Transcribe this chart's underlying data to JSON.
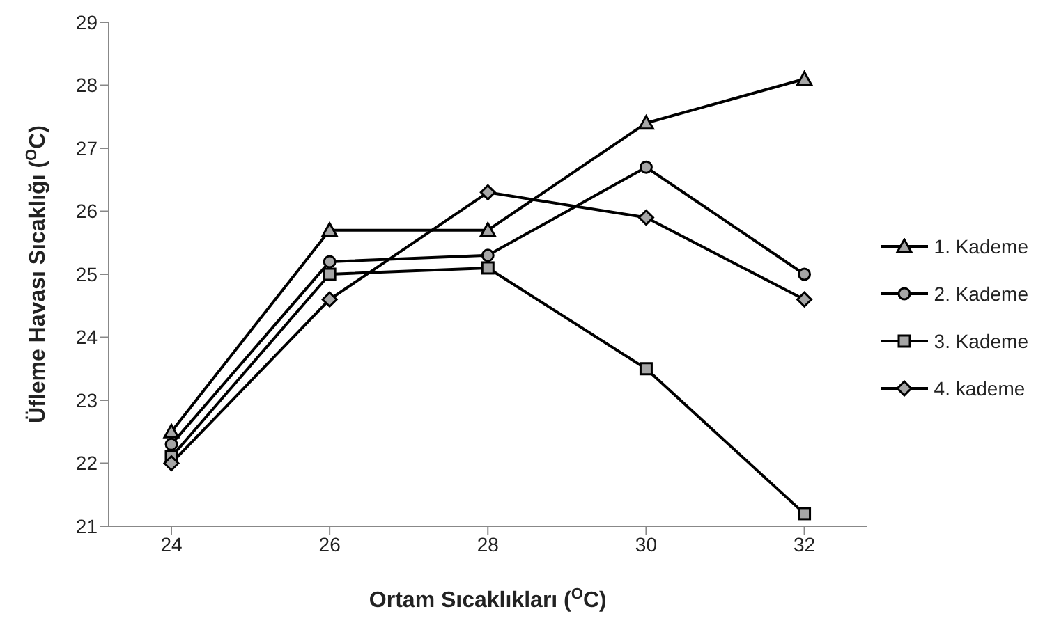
{
  "chart_data": {
    "type": "line",
    "xlabel": "Ortam Sıcaklıkları ($^{O}$C)",
    "ylabel": "Üfleme Havası Sıcaklığı ($^{O}$C)",
    "categories": [
      "24",
      "26",
      "28",
      "30",
      "32"
    ],
    "series": [
      {
        "name": "1. Kademe",
        "color": "#000000",
        "marker": "triangle",
        "values": [
          22.5,
          25.7,
          25.7,
          27.4,
          28.1
        ]
      },
      {
        "name": "2. Kademe",
        "color": "#000000",
        "marker": "circle",
        "values": [
          22.3,
          25.2,
          25.3,
          26.7,
          25.0
        ]
      },
      {
        "name": "3. Kademe",
        "color": "#000000",
        "marker": "square",
        "values": [
          22.1,
          25.0,
          25.1,
          23.5,
          21.2
        ]
      },
      {
        "name": "4. kademe",
        "color": "#000000",
        "marker": "diamond",
        "values": [
          22.0,
          24.6,
          26.3,
          25.9,
          24.6
        ]
      }
    ],
    "ylim": [
      21,
      29
    ],
    "yticks": [
      21,
      22,
      23,
      24,
      25,
      26,
      27,
      28,
      29
    ],
    "grid": false,
    "legend": "right",
    "line_style": "solid"
  }
}
